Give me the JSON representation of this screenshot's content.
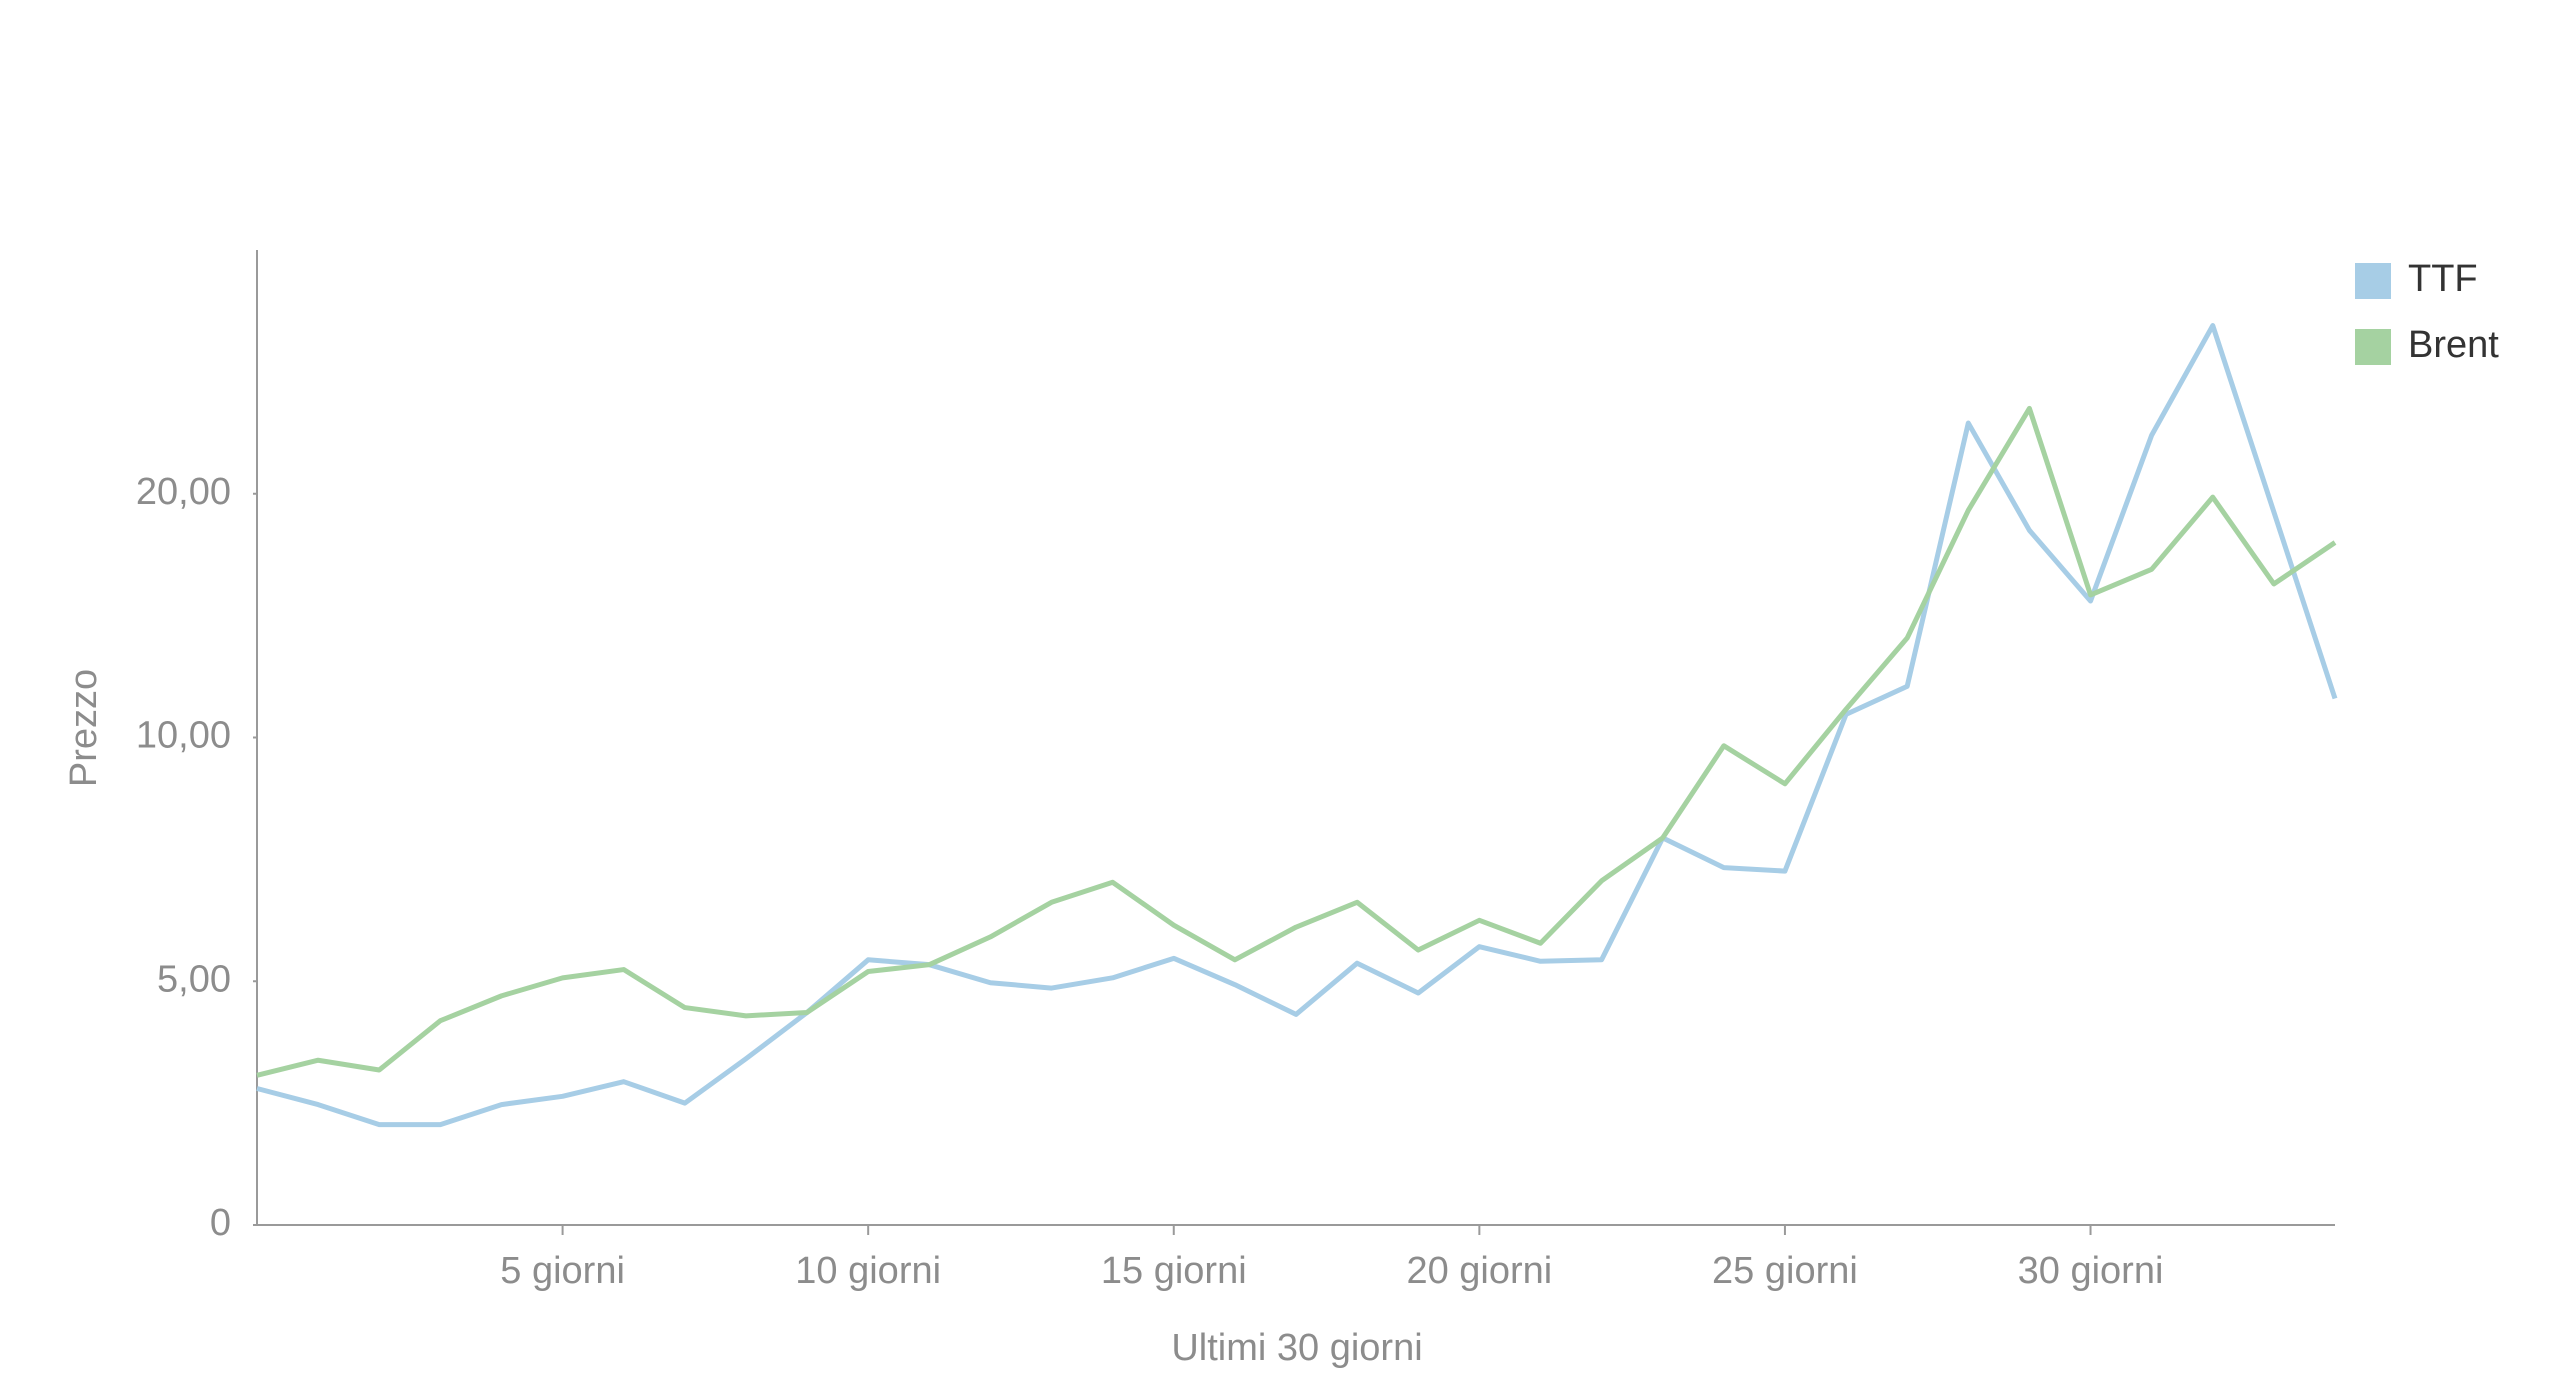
{
  "chart_data": {
    "type": "line",
    "x_label": "Ultimi 30 giorni",
    "y_label": "Prezzo",
    "x": [
      0,
      1,
      2,
      3,
      4,
      5,
      6,
      7,
      8,
      9,
      10,
      11,
      12,
      13,
      14,
      15,
      16,
      17,
      18,
      19,
      20,
      21,
      22,
      23,
      24,
      25,
      26,
      27,
      28,
      29,
      30,
      31,
      32,
      33,
      34
    ],
    "xlim": [
      0,
      34
    ],
    "xticks": [
      {
        "value": 5,
        "label": "5 giorni"
      },
      {
        "value": 10,
        "label": "10 giorni"
      },
      {
        "value": 15,
        "label": "15 giorni"
      },
      {
        "value": 20,
        "label": "20 giorni"
      },
      {
        "value": 25,
        "label": "25 giorni"
      },
      {
        "value": 30,
        "label": "30 giorni"
      }
    ],
    "ylim": [
      0,
      30
    ],
    "yticks": [
      0,
      {
        "value": 5,
        "label": "5,00"
      },
      {
        "value": 10,
        "label": "10,00"
      },
      {
        "value": 20,
        "label": "20,00"
      }
    ],
    "y_scale": "segmented",
    "grid": false,
    "legend": "top-right",
    "series": [
      {
        "name": "TTF",
        "color": "#a7cde6",
        "values": [
          2.8,
          2.47,
          2.06,
          2.06,
          2.47,
          2.64,
          2.94,
          2.5,
          3.41,
          4.36,
          5.44,
          5.34,
          4.97,
          4.86,
          5.07,
          5.47,
          4.93,
          4.32,
          5.37,
          4.76,
          5.71,
          5.41,
          5.44,
          7.94,
          7.33,
          7.26,
          10.95,
          12.1,
          22.9,
          18.5,
          15.6,
          22.4,
          26.9,
          19.25,
          11.6
        ]
      },
      {
        "name": "Brent",
        "color": "#a5d2a1",
        "values": [
          3.07,
          3.38,
          3.18,
          4.19,
          4.7,
          5.07,
          5.24,
          4.46,
          4.29,
          4.36,
          5.2,
          5.34,
          5.91,
          6.62,
          7.03,
          6.15,
          5.44,
          6.11,
          6.62,
          5.64,
          6.25,
          5.78,
          7.06,
          7.94,
          9.83,
          9.05,
          11.16,
          14.08,
          19.32,
          23.5,
          15.85,
          16.9,
          19.86,
          16.3,
          18.0
        ]
      }
    ]
  }
}
